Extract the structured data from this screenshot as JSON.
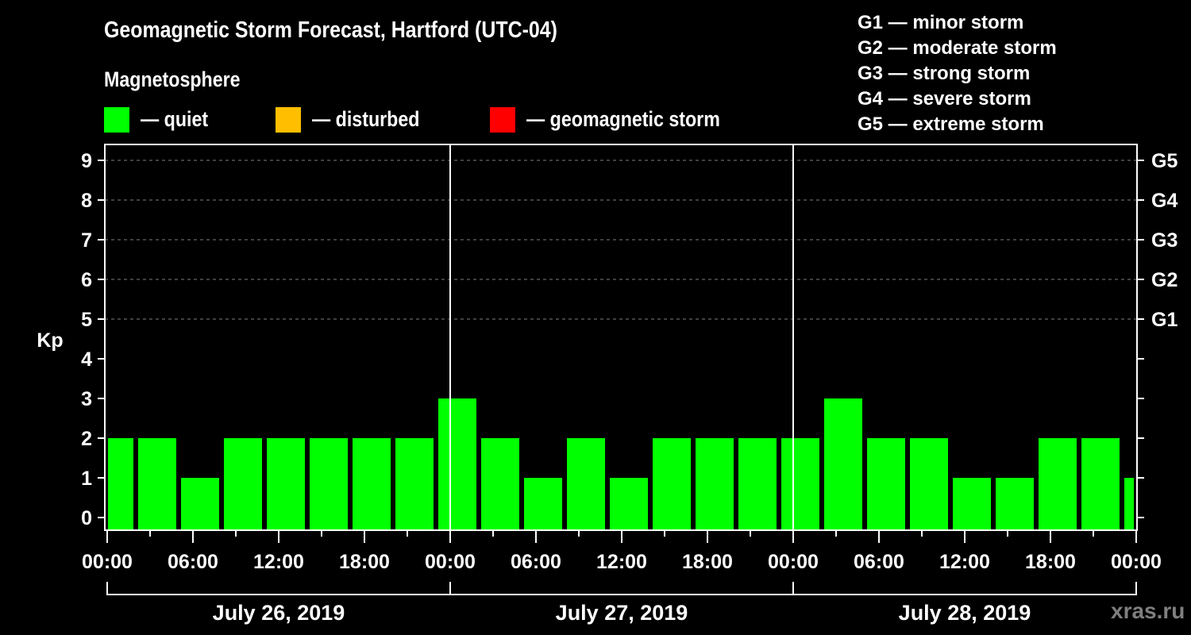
{
  "header": {
    "title": "Geomagnetic Storm Forecast, Hartford (UTC-04)",
    "subtitle": "Magnetosphere"
  },
  "legend": [
    {
      "label": "— quiet",
      "color": "#00ff00"
    },
    {
      "label": "— disturbed",
      "color": "#ffbf00"
    },
    {
      "label": "— geomagnetic storm",
      "color": "#ff0000"
    }
  ],
  "g_scale": [
    "G1 — minor storm",
    "G2 — moderate storm",
    "G3 — strong storm",
    "G4 — severe storm",
    "G5 — extreme storm"
  ],
  "watermark": "xras.ru",
  "colors": {
    "background": "#000000",
    "axis": "#ffffff",
    "grid": "#808080",
    "quiet": "#00ff00",
    "disturbed": "#ffbf00",
    "storm": "#ff0000",
    "watermark": "#7f7f7f"
  },
  "chart_data": {
    "type": "bar",
    "title": "Geomagnetic Storm Forecast, Hartford (UTC-04)",
    "xlabel": "",
    "ylabel": "Kp",
    "ylim": [
      0,
      9
    ],
    "yticks": [
      0,
      1,
      2,
      3,
      4,
      5,
      6,
      7,
      8,
      9
    ],
    "right_axis": {
      "ticks": [
        5,
        6,
        7,
        8,
        9
      ],
      "labels": [
        "G1",
        "G2",
        "G3",
        "G4",
        "G5"
      ]
    },
    "grid": "dashed horizontal at Kp 5–9",
    "x_range_hours": [
      0,
      72
    ],
    "bar_interval_hours": 3,
    "bar_offset_hours": -1,
    "x_tick_labels": [
      "00:00",
      "06:00",
      "12:00",
      "18:00",
      "00:00",
      "06:00",
      "12:00",
      "18:00",
      "00:00",
      "06:00",
      "12:00",
      "18:00",
      "00:00"
    ],
    "days": [
      "July 26, 2019",
      "July 27, 2019",
      "July 28, 2019"
    ],
    "categories": [
      "Jul 26 -01:00–02:00",
      "Jul 26 02:00–05:00",
      "Jul 26 05:00–08:00",
      "Jul 26 08:00–11:00",
      "Jul 26 11:00–14:00",
      "Jul 26 14:00–17:00",
      "Jul 26 17:00–20:00",
      "Jul 26 20:00–23:00",
      "Jul 26 23:00–Jul 27 02:00",
      "Jul 27 02:00–05:00",
      "Jul 27 05:00–08:00",
      "Jul 27 08:00–11:00",
      "Jul 27 11:00–14:00",
      "Jul 27 14:00–17:00",
      "Jul 27 17:00–20:00",
      "Jul 27 20:00–23:00",
      "Jul 27 23:00–Jul 28 02:00",
      "Jul 28 02:00–05:00",
      "Jul 28 05:00–08:00",
      "Jul 28 08:00–11:00",
      "Jul 28 11:00–14:00",
      "Jul 28 14:00–17:00",
      "Jul 28 17:00–20:00",
      "Jul 28 20:00–23:00",
      "Jul 28 23:00–Jul 29 00:00"
    ],
    "values": [
      2,
      2,
      1,
      2,
      2,
      2,
      2,
      2,
      3,
      2,
      1,
      2,
      1,
      2,
      2,
      2,
      2,
      3,
      2,
      2,
      1,
      1,
      2,
      2,
      1
    ],
    "status": [
      "quiet",
      "quiet",
      "quiet",
      "quiet",
      "quiet",
      "quiet",
      "quiet",
      "quiet",
      "quiet",
      "quiet",
      "quiet",
      "quiet",
      "quiet",
      "quiet",
      "quiet",
      "quiet",
      "quiet",
      "quiet",
      "quiet",
      "quiet",
      "quiet",
      "quiet",
      "quiet",
      "quiet",
      "quiet"
    ]
  }
}
